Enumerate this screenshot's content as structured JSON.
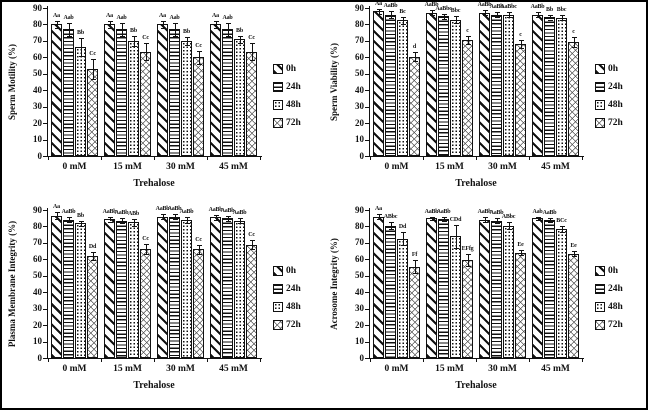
{
  "figure": {
    "background": "#ffffff",
    "border_color": "#000000",
    "ink_color": "#111111"
  },
  "chart_data": [
    {
      "type": "bar",
      "id": "sperm-motility",
      "title": "",
      "ylabel": "Sperm Motility (%)",
      "xlabel": "Trehalose",
      "categories": [
        "0 mM",
        "15 mM",
        "30 mM",
        "45 mM"
      ],
      "ylim": [
        0,
        90
      ],
      "yticks": [
        0,
        10,
        20,
        30,
        40,
        50,
        60,
        70,
        80,
        90
      ],
      "grid": false,
      "legend_position": "right",
      "legend": [
        "0h",
        "24h",
        "48h",
        "72h"
      ],
      "series": [
        {
          "name": "0h",
          "pattern": "diagonal-stripes",
          "values": [
            80,
            80,
            80,
            80
          ],
          "errors": [
            2,
            2,
            2,
            2
          ],
          "sig_labels": [
            "Aa",
            "Aa",
            "Aa",
            "Aa"
          ]
        },
        {
          "name": "24h",
          "pattern": "horizontal-lines",
          "values": [
            77,
            77,
            77,
            77
          ],
          "errors": [
            4,
            4,
            4,
            4
          ],
          "sig_labels": [
            "Aab",
            "Aab",
            "Aab",
            "Aab"
          ]
        },
        {
          "name": "48h",
          "pattern": "dots",
          "values": [
            66.5,
            70,
            70,
            71
          ],
          "errors": [
            5.5,
            3,
            2.5,
            2
          ],
          "sig_labels": [
            "Bb",
            "Bb",
            "Bb",
            "Bb"
          ]
        },
        {
          "name": "72h",
          "pattern": "crosshatch",
          "values": [
            53,
            63.5,
            60,
            63.5
          ],
          "errors": [
            6,
            5,
            4,
            5
          ],
          "sig_labels": [
            "Cc",
            "Cc",
            "Cc",
            "Cc"
          ]
        }
      ]
    },
    {
      "type": "bar",
      "id": "sperm-viability",
      "title": "",
      "ylabel": "Sperm Viability (%)",
      "xlabel": "Trehalose",
      "categories": [
        "0 mM",
        "15 mM",
        "30 mM",
        "45 mM"
      ],
      "ylim": [
        0,
        90
      ],
      "yticks": [
        0,
        10,
        20,
        30,
        40,
        50,
        60,
        70,
        80,
        90
      ],
      "grid": false,
      "legend_position": "right",
      "legend": [
        "0h",
        "24h",
        "48h",
        "72h"
      ],
      "series": [
        {
          "name": "0h",
          "pattern": "diagonal-stripes",
          "values": [
            88,
            87,
            87,
            86
          ],
          "errors": [
            1.5,
            1.5,
            1.5,
            1.5
          ],
          "sig_labels": [
            "Aa",
            "AaBb",
            "AaBb",
            "AaBb"
          ]
        },
        {
          "name": "24h",
          "pattern": "horizontal-lines",
          "values": [
            86,
            85,
            86,
            84.5
          ],
          "errors": [
            2,
            1.5,
            1.5,
            1.5
          ],
          "sig_labels": [
            "AaBb",
            "AaBbc",
            "AaBb",
            "Bb"
          ]
        },
        {
          "name": "48h",
          "pattern": "dots",
          "values": [
            82.5,
            83,
            86,
            84
          ],
          "errors": [
            2,
            2,
            1.5,
            1.5
          ],
          "sig_labels": [
            "Bc",
            "Bbc",
            "AaBbc",
            "Bbc"
          ]
        },
        {
          "name": "72h",
          "pattern": "crosshatch",
          "values": [
            60.5,
            70.5,
            68,
            69.5
          ],
          "errors": [
            3,
            2.5,
            2.5,
            3
          ],
          "sig_labels": [
            "d",
            "c",
            "c",
            "c"
          ]
        }
      ]
    },
    {
      "type": "bar",
      "id": "plasma-membrane-integrity",
      "title": "",
      "ylabel": "Plasma Membrane Integrity (%)",
      "xlabel": "Trehalose",
      "categories": [
        "0 mM",
        "15 mM",
        "30 mM",
        "45 mM"
      ],
      "ylim": [
        0,
        90
      ],
      "yticks": [
        0,
        10,
        20,
        30,
        40,
        50,
        60,
        70,
        80,
        90
      ],
      "grid": false,
      "legend_position": "right",
      "legend": [
        "0h",
        "24h",
        "48h",
        "72h"
      ],
      "series": [
        {
          "name": "0h",
          "pattern": "diagonal-stripes",
          "values": [
            86.5,
            84.5,
            86,
            85.5
          ],
          "errors": [
            2,
            1.5,
            1.5,
            1.5
          ],
          "sig_labels": [
            "Aa",
            "AaBb",
            "AaBb",
            "AaBb"
          ]
        },
        {
          "name": "24h",
          "pattern": "horizontal-lines",
          "values": [
            84,
            83.5,
            86,
            85
          ],
          "errors": [
            1.5,
            1.5,
            1.5,
            1.5
          ],
          "sig_labels": [
            "AaBb",
            "AaBb",
            "AaBb",
            "AaBb"
          ]
        },
        {
          "name": "48h",
          "pattern": "dots",
          "values": [
            82,
            82.5,
            84,
            83.5
          ],
          "errors": [
            1.5,
            2,
            2,
            1.5
          ],
          "sig_labels": [
            "Bb",
            "ABb",
            "AaBb",
            "AaBb"
          ]
        },
        {
          "name": "72h",
          "pattern": "crosshatch",
          "values": [
            62,
            66.5,
            66,
            69
          ],
          "errors": [
            2.5,
            3,
            3,
            2.5
          ],
          "sig_labels": [
            "Dd",
            "Cc",
            "Cc",
            "Cc"
          ]
        }
      ]
    },
    {
      "type": "bar",
      "id": "acrosome-integrity",
      "title": "",
      "ylabel": "Acrosome Integrity (%)",
      "xlabel": "Trehalose",
      "categories": [
        "0 mM",
        "15 mM",
        "30 mM",
        "45 mM"
      ],
      "ylim": [
        0,
        90
      ],
      "yticks": [
        0,
        10,
        20,
        30,
        40,
        50,
        60,
        70,
        80,
        90
      ],
      "grid": false,
      "legend_position": "right",
      "legend": [
        "0h",
        "24h",
        "48h",
        "72h"
      ],
      "series": [
        {
          "name": "0h",
          "pattern": "diagonal-stripes",
          "values": [
            86,
            85,
            84,
            85
          ],
          "errors": [
            1.5,
            1,
            1.5,
            1
          ],
          "sig_labels": [
            "Aa",
            "AaBb",
            "AaBb",
            "Aab"
          ]
        },
        {
          "name": "24h",
          "pattern": "horizontal-lines",
          "values": [
            80.5,
            84.5,
            83.5,
            84
          ],
          "errors": [
            2,
            1,
            1.5,
            1
          ],
          "sig_labels": [
            "ABbc",
            "AaBb",
            "AaBb",
            "AaBb"
          ]
        },
        {
          "name": "48h",
          "pattern": "dots",
          "values": [
            72.5,
            74,
            80.5,
            78.5
          ],
          "errors": [
            4,
            7,
            2,
            2
          ],
          "sig_labels": [
            "Dd",
            "CDd",
            "ABbc",
            "BCc"
          ]
        },
        {
          "name": "72h",
          "pattern": "crosshatch",
          "values": [
            55.5,
            59.5,
            64,
            63.5
          ],
          "errors": [
            4,
            3.5,
            1.5,
            1.5
          ],
          "sig_labels": [
            "Ff",
            "EFfg",
            "Ee",
            "Ee"
          ]
        }
      ]
    }
  ]
}
